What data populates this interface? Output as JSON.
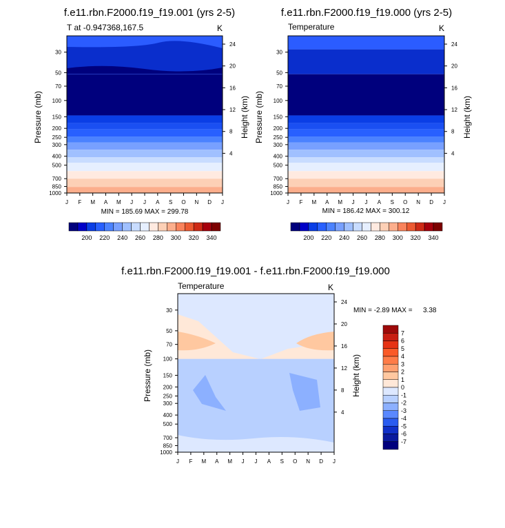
{
  "panels": [
    {
      "title": "f.e11.rbn.F2000.f19_f19.001 (yrs 2-5)",
      "left_label": "T at -0.947368,167.5",
      "right_label": "K",
      "stats": "MIN = 185.69 MAX = 299.78"
    },
    {
      "title": "f.e11.rbn.F2000.f19_f19.000 (yrs 2-5)",
      "left_label": "Temperature",
      "right_label": "K",
      "stats": "MIN = 186.42 MAX = 300.12"
    },
    {
      "title": "f.e11.rbn.F2000.f19_f19.001 - f.e11.rbn.F2000.f19_f19.000",
      "left_label": "Temperature",
      "right_label": "K",
      "stats_min": "MIN = -2.89 MAX =",
      "stats_max": "3.38"
    }
  ],
  "axes": {
    "ylabel": "Pressure (mb)",
    "y2label": "Height (km)",
    "months": [
      "J",
      "F",
      "M",
      "A",
      "M",
      "J",
      "J",
      "A",
      "S",
      "O",
      "N",
      "D",
      "J"
    ],
    "pressure_ticks": [
      30,
      50,
      70,
      100,
      150,
      200,
      250,
      300,
      400,
      500,
      700,
      850,
      1000
    ],
    "height_ticks": [
      24,
      20,
      16,
      12,
      8,
      4
    ]
  },
  "chart_data": [
    {
      "type": "heatmap",
      "title": "f.e11.rbn.F2000.f19_f19.001 (yrs 2-5)",
      "ylabel": "Pressure (mb)",
      "y2label": "Height (km)",
      "ylim": [
        1000,
        20
      ],
      "yscale": "log",
      "colorbar": {
        "labels": [
          "200",
          "220",
          "240",
          "260",
          "280",
          "300",
          "320",
          "340"
        ],
        "colors": [
          "#00007d",
          "#0000c8",
          "#0a3ee6",
          "#2860ff",
          "#4b82ff",
          "#78a0ff",
          "#a0c0ff",
          "#c8dcff",
          "#e6efff",
          "#ffeae0",
          "#fdd0b6",
          "#fcae8c",
          "#f9835c",
          "#ec5a32",
          "#ce2a16",
          "#a6000c",
          "#7d0000"
        ]
      },
      "min": 185.69,
      "max": 299.78
    },
    {
      "type": "heatmap",
      "title": "f.e11.rbn.F2000.f19_f19.000 (yrs 2-5)",
      "ylabel": "Pressure (mb)",
      "y2label": "Height (km)",
      "ylim": [
        1000,
        20
      ],
      "yscale": "log",
      "min": 186.42,
      "max": 300.12
    },
    {
      "type": "heatmap",
      "title": "f.e11.rbn.F2000.f19_f19.001 - f.e11.rbn.F2000.f19_f19.000",
      "ylabel": "Pressure (mb)",
      "y2label": "Height (km)",
      "ylim": [
        1000,
        20
      ],
      "yscale": "log",
      "colorbar": {
        "labels": [
          "7",
          "6",
          "5",
          "4",
          "3",
          "2",
          "1",
          "0",
          "-1",
          "-2",
          "-3",
          "-4",
          "-5",
          "-6",
          "-7"
        ],
        "colors": [
          "#9e0a0a",
          "#c81e12",
          "#e63214",
          "#fa5a28",
          "#ff7c48",
          "#ffa070",
          "#ffc8a0",
          "#ffe8d8",
          "#dde8ff",
          "#b8d0ff",
          "#8cb0ff",
          "#5a88ff",
          "#2a5cf0",
          "#1030c8",
          "#0a1a9e",
          "#00007d"
        ]
      },
      "min": -2.89,
      "max": 3.38
    }
  ]
}
